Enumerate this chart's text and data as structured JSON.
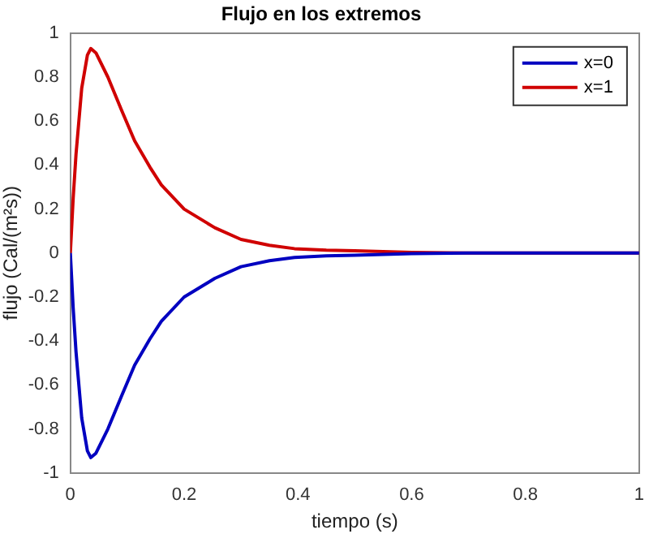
{
  "chart_data": {
    "type": "line",
    "title": "Flujo en los extremos",
    "xlabel": "tiempo (s)",
    "ylabel": "flujo (Cal/(m²s))",
    "x": [
      0,
      0.005,
      0.01,
      0.02,
      0.03,
      0.036,
      0.045,
      0.066,
      0.09,
      0.113,
      0.14,
      0.16,
      0.2,
      0.254,
      0.3,
      0.35,
      0.394,
      0.45,
      0.5,
      0.6,
      0.7,
      0.8,
      1
    ],
    "series": [
      {
        "name": "x=0",
        "color": "#0000c0",
        "values": [
          0,
          -0.25,
          -0.45,
          -0.75,
          -0.9,
          -0.93,
          -0.91,
          -0.8,
          -0.65,
          -0.51,
          -0.39,
          -0.31,
          -0.2,
          -0.115,
          -0.062,
          -0.035,
          -0.02,
          -0.013,
          -0.01,
          -0.003,
          0,
          0,
          0
        ]
      },
      {
        "name": "x=1",
        "color": "#d00000",
        "values": [
          0,
          0.25,
          0.45,
          0.75,
          0.9,
          0.93,
          0.91,
          0.8,
          0.65,
          0.51,
          0.39,
          0.31,
          0.2,
          0.115,
          0.062,
          0.035,
          0.02,
          0.013,
          0.01,
          0.003,
          0,
          0,
          0
        ]
      }
    ],
    "xlim": [
      0,
      1
    ],
    "xticks": [
      0,
      0.2,
      0.4,
      0.6,
      0.8,
      1
    ],
    "ylim": [
      -1,
      1
    ],
    "yticks": [
      -1,
      -0.8,
      -0.6,
      -0.4,
      -0.2,
      0,
      0.2,
      0.4,
      0.6,
      0.8,
      1
    ],
    "grid": false,
    "legend": "top right",
    "marker": "none",
    "line_style": "solid"
  }
}
